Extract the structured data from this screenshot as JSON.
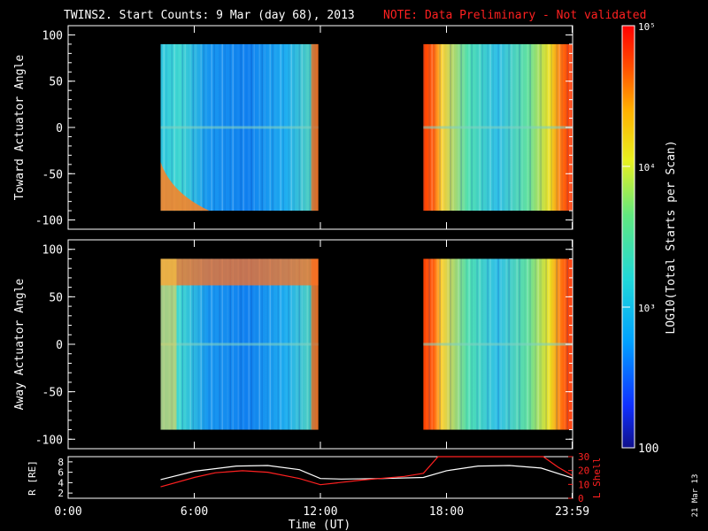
{
  "header": {
    "title": "TWINS2. Start Counts:  9 Mar (day  68), 2013",
    "note": "NOTE: Data Preliminary - Not validated",
    "note_color": "#ff2020"
  },
  "footer": {
    "date_stamp": "21 Mar 13"
  },
  "colorbar": {
    "label": "LOG10(Total Starts per Scan)",
    "scale": "log",
    "range": [
      100,
      100000
    ],
    "ticks": [
      {
        "label": "100",
        "value": 100
      },
      {
        "label": "10³",
        "value": 1000
      },
      {
        "label": "10⁴",
        "value": 10000
      },
      {
        "label": "10⁵",
        "value": 100000
      }
    ],
    "colormap": "rainbow (blue to red)"
  },
  "chart_data": [
    {
      "type": "heatmap",
      "ylabel": "Toward Actuator Angle",
      "ylim": [
        -110,
        110
      ],
      "yticks": [
        "100",
        "50",
        "0",
        "-50",
        "-100"
      ],
      "x_range_hours": [
        0,
        24
      ],
      "data_coverage_hours": [
        [
          4.4,
          11.9
        ],
        [
          16.9,
          23.98
        ]
      ],
      "y_coverage": [
        -90,
        90
      ],
      "log_counts_typical": {
        "first_interval": 3.1,
        "second_interval": 3.9
      }
    },
    {
      "type": "heatmap",
      "ylabel": "Away Actuator Angle",
      "ylim": [
        -110,
        110
      ],
      "yticks": [
        "100",
        "50",
        "0",
        "-50",
        "-100"
      ],
      "x_range_hours": [
        0,
        24
      ],
      "data_coverage_hours": [
        [
          4.4,
          11.9
        ],
        [
          16.9,
          23.98
        ]
      ],
      "y_coverage": [
        -90,
        90
      ],
      "log_counts_typical": {
        "first_interval": 3.2,
        "second_interval": 3.9
      }
    },
    {
      "type": "line",
      "ylabel": "R [RE]",
      "ylim": [
        1,
        9
      ],
      "yticks": [
        "8",
        "6",
        "4",
        "2"
      ],
      "y2label": "L Shell",
      "y2lim": [
        0,
        30
      ],
      "y2ticks": [
        "30",
        "20",
        "10",
        "0"
      ],
      "xlabel": "Time (UT)",
      "xticks": [
        "0:00",
        "6:00",
        "12:00",
        "18:00",
        "23:59"
      ],
      "xtick_hours": [
        0,
        6,
        12,
        18,
        23.98
      ],
      "series": [
        {
          "axis": "left",
          "color": "#ffffff",
          "x": [
            4.4,
            6,
            8,
            9.5,
            11,
            12,
            13,
            15,
            16.9,
            18,
            19.5,
            21,
            22.5,
            23.98
          ],
          "y": [
            4.6,
            6.2,
            7.2,
            7.3,
            6.5,
            4.8,
            4.7,
            4.8,
            5.0,
            6.3,
            7.2,
            7.3,
            6.8,
            4.9
          ]
        },
        {
          "axis": "left",
          "color": "#ff2020",
          "x": [
            4.4,
            6,
            7,
            8.3,
            9.5,
            11,
            12,
            14,
            16,
            16.9,
            17.6,
            22.6,
            23.3,
            23.98
          ],
          "y": [
            3.2,
            5.0,
            5.9,
            6.3,
            6.0,
            4.8,
            3.6,
            4.5,
            5.2,
            5.8,
            9.2,
            9.2,
            7.0,
            5.4
          ]
        }
      ]
    }
  ]
}
